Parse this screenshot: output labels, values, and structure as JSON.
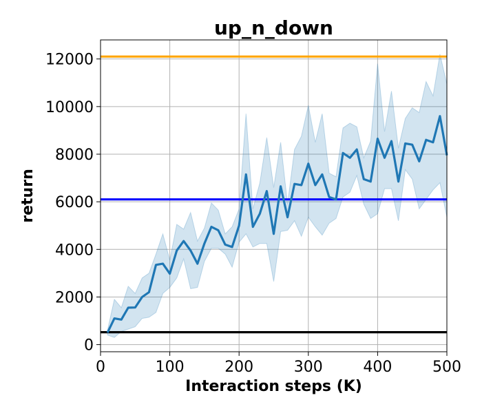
{
  "chart_data": {
    "type": "line",
    "title": "up_n_down",
    "xlabel": "Interaction steps (K)",
    "ylabel": "return",
    "xlim": [
      0,
      500
    ],
    "ylim": [
      -300,
      12800
    ],
    "xticks": [
      0,
      100,
      200,
      300,
      400,
      500
    ],
    "yticks": [
      0,
      2000,
      4000,
      6000,
      8000,
      10000,
      12000
    ],
    "grid": true,
    "series": [
      {
        "x": [
          10,
          20,
          30,
          40,
          50,
          60,
          70,
          80,
          90,
          100,
          110,
          120,
          130,
          140,
          150,
          160,
          170,
          180,
          190,
          200,
          210,
          220,
          230,
          240,
          250,
          260,
          270,
          280,
          290,
          300,
          310,
          320,
          330,
          340,
          350,
          360,
          370,
          380,
          390,
          400,
          410,
          420,
          430,
          440,
          450,
          460,
          470,
          480,
          490,
          500
        ],
        "values": [
          500,
          1100,
          1050,
          1550,
          1560,
          2000,
          2200,
          3350,
          3400,
          2980,
          3950,
          4350,
          3950,
          3400,
          4250,
          4950,
          4800,
          4200,
          4100,
          5000,
          7150,
          4950,
          5500,
          6450,
          4650,
          6650,
          5350,
          6750,
          6700,
          7600,
          6700,
          7150,
          6200,
          6100,
          8050,
          7850,
          8200,
          6950,
          6850,
          8650,
          7850,
          8550,
          6850,
          8450,
          8400,
          7700,
          8600,
          8500,
          9600,
          7950
        ],
        "lower": [
          400,
          300,
          550,
          650,
          750,
          1100,
          1150,
          1350,
          2150,
          2400,
          2800,
          3600,
          2350,
          2400,
          3500,
          4050,
          4050,
          3800,
          3250,
          4300,
          4650,
          4100,
          4250,
          4250,
          2650,
          4750,
          4800,
          5200,
          4550,
          5350,
          4950,
          4600,
          5100,
          5300,
          6200,
          6400,
          7100,
          5900,
          5300,
          5500,
          6550,
          6550,
          5200,
          7350,
          6950,
          5700,
          6100,
          6500,
          6800,
          5350
        ],
        "upper": [
          600,
          1900,
          1550,
          2450,
          2150,
          2800,
          3000,
          3800,
          4650,
          3550,
          5050,
          4850,
          5550,
          4350,
          4900,
          5950,
          5650,
          4650,
          4950,
          5700,
          9700,
          5700,
          6800,
          8700,
          6600,
          8500,
          5900,
          8200,
          8750,
          10050,
          8500,
          9700,
          7200,
          7050,
          9100,
          9300,
          9150,
          7850,
          8550,
          11800,
          8950,
          10650,
          8250,
          9500,
          9950,
          9750,
          11050,
          10450,
          12200,
          10950
        ],
        "color": "#1f77b4"
      }
    ],
    "reference_lines": [
      {
        "y": 12100,
        "color": "#ffa500"
      },
      {
        "y": 6100,
        "color": "#0000ff"
      },
      {
        "y": 520,
        "color": "#000000"
      }
    ]
  }
}
